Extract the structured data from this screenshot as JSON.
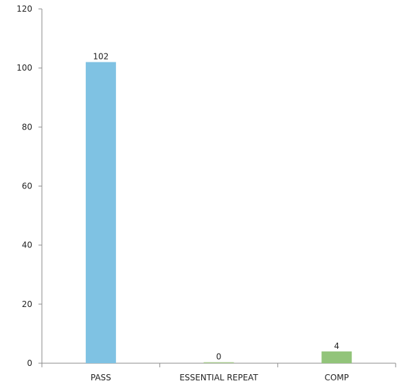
{
  "chart_data": {
    "type": "bar",
    "categories": [
      "PASS",
      "ESSENTIAL REPEAT",
      "COMP"
    ],
    "values": [
      102,
      0,
      4
    ],
    "data_labels": [
      "102",
      "0",
      "4"
    ],
    "colors": [
      "#7fc2e3",
      "#a8c98f",
      "#92c47a"
    ],
    "title": "",
    "xlabel": "",
    "ylabel": "",
    "ylim": [
      0,
      120
    ],
    "yticks": [
      0,
      20,
      40,
      60,
      80,
      100,
      120
    ],
    "grid": false,
    "legend": "none"
  }
}
